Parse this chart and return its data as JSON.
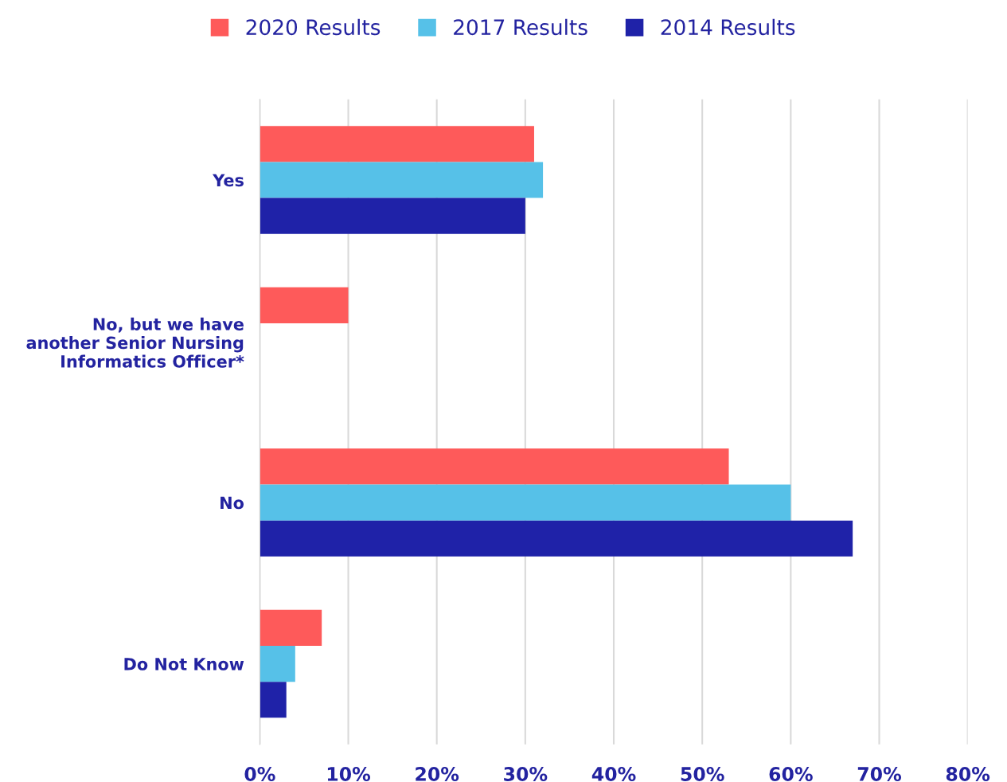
{
  "chart_data": {
    "type": "bar",
    "orientation": "horizontal",
    "categories": [
      "Yes",
      "No, but we have\nanother Senior Nursing\nInformatics Officer*",
      "No",
      "Do Not Know"
    ],
    "series": [
      {
        "name": "2020 Results",
        "color": "#fe5a5a",
        "values": [
          31,
          10,
          53,
          7
        ]
      },
      {
        "name": "2017 Results",
        "color": "#56c1e8",
        "values": [
          32,
          null,
          60,
          4
        ]
      },
      {
        "name": "2014 Results",
        "color": "#1f22a8",
        "values": [
          30,
          null,
          67,
          3
        ]
      }
    ],
    "xlim": [
      0,
      80
    ],
    "xticks": [
      {
        "value": 0,
        "label": "0%"
      },
      {
        "value": 10,
        "label": "10%"
      },
      {
        "value": 20,
        "label": "20%"
      },
      {
        "value": 30,
        "label": "30%"
      },
      {
        "value": 40,
        "label": "40%"
      },
      {
        "value": 50,
        "label": "50%"
      },
      {
        "value": 60,
        "label": "60%"
      },
      {
        "value": 70,
        "label": "70%"
      },
      {
        "value": 80,
        "label": "80%"
      }
    ],
    "grid": "x",
    "legend": "top"
  }
}
